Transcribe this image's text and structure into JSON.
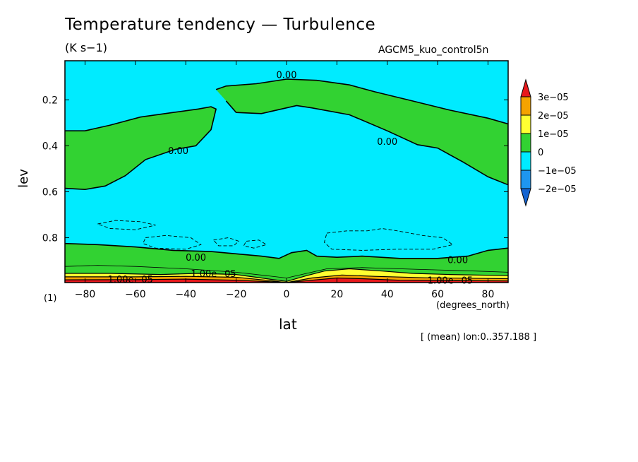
{
  "chart_data": {
    "type": "heatmap",
    "subtype": "latitude-pressure filled contour",
    "title": "Temperature tendency — Turbulence",
    "units": "(K s−1)",
    "dataset": "AGCM5_kuo_control5n",
    "xlabel": "lat",
    "xunits": "(degrees_north)",
    "ylabel": "lev",
    "footnote": "(1)",
    "note": "[ (mean) lon:0..357.188 ]",
    "xlim": [
      -88,
      88
    ],
    "ylim": [
      0.03,
      0.995
    ],
    "y_inverted": true,
    "xticks": [
      -80,
      -60,
      -40,
      -20,
      0,
      20,
      40,
      60,
      80
    ],
    "xtick_labels": [
      "−80",
      "−60",
      "−40",
      "−20",
      "0",
      "20",
      "40",
      "60",
      "80"
    ],
    "yticks": [
      0.2,
      0.4,
      0.6,
      0.8
    ],
    "ytick_labels": [
      "0.2",
      "0.4",
      "0.6",
      "0.8"
    ],
    "colorbar": {
      "labels": [
        "3e−05",
        "2e−05",
        "1e−05",
        "0",
        "−1e−05",
        "−2e−05"
      ],
      "colors": [
        "#e8181c",
        "#f5a300",
        "#ffff32",
        "#32d232",
        "#00ebff",
        "#1e96f0",
        "#1464d2"
      ]
    },
    "colors": {
      "background": "#00ebff",
      "positive_small": "#32d232",
      "yellow": "#ffff32",
      "orange": "#f5a300",
      "red": "#e8181c"
    },
    "contour_labels": [
      {
        "text": "0.00",
        "x": 0,
        "y": 0.09
      },
      {
        "text": "0.00",
        "x": -43,
        "y": 0.42
      },
      {
        "text": "0.00",
        "x": 40,
        "y": 0.38
      },
      {
        "text": "0.00",
        "x": -36,
        "y": 0.885
      },
      {
        "text": "0.00",
        "x": 68,
        "y": 0.895
      },
      {
        "text": "1.00e−05",
        "x": -29,
        "y": 0.955
      },
      {
        "text": "1.00e−05",
        "x": -62,
        "y": 0.98
      },
      {
        "text": "1.00e−05",
        "x": 65,
        "y": 0.985
      }
    ],
    "zero_contour_upper_left": [
      [
        -88,
        0.335
      ],
      [
        -80,
        0.335
      ],
      [
        -70,
        0.31
      ],
      [
        -58,
        0.275
      ],
      [
        -45,
        0.255
      ],
      [
        -35,
        0.24
      ],
      [
        -30,
        0.23
      ],
      [
        -28,
        0.24
      ],
      [
        -30,
        0.33
      ],
      [
        -36,
        0.4
      ],
      [
        -44,
        0.415
      ],
      [
        -56,
        0.46
      ],
      [
        -64,
        0.53
      ],
      [
        -72,
        0.575
      ],
      [
        -80,
        0.59
      ],
      [
        -88,
        0.585
      ]
    ],
    "zero_contour_upper_right": [
      [
        -28,
        0.155
      ],
      [
        -24,
        0.14
      ],
      [
        -12,
        0.13
      ],
      [
        0,
        0.11
      ],
      [
        12,
        0.115
      ],
      [
        25,
        0.135
      ],
      [
        35,
        0.165
      ],
      [
        50,
        0.205
      ],
      [
        65,
        0.245
      ],
      [
        80,
        0.28
      ],
      [
        88,
        0.305
      ],
      [
        88,
        0.57
      ],
      [
        80,
        0.535
      ],
      [
        70,
        0.47
      ],
      [
        60,
        0.41
      ],
      [
        52,
        0.395
      ],
      [
        40,
        0.335
      ],
      [
        25,
        0.265
      ],
      [
        10,
        0.235
      ],
      [
        4,
        0.225
      ],
      [
        0,
        0.235
      ],
      [
        -10,
        0.26
      ],
      [
        -20,
        0.255
      ],
      [
        -24,
        0.205
      ]
    ],
    "zero_contour_lower": [
      [
        -88,
        0.825
      ],
      [
        -75,
        0.83
      ],
      [
        -60,
        0.84
      ],
      [
        -45,
        0.855
      ],
      [
        -30,
        0.86
      ],
      [
        -20,
        0.87
      ],
      [
        -10,
        0.88
      ],
      [
        -3,
        0.89
      ],
      [
        2,
        0.865
      ],
      [
        8,
        0.855
      ],
      [
        12,
        0.88
      ],
      [
        20,
        0.885
      ],
      [
        30,
        0.88
      ],
      [
        45,
        0.89
      ],
      [
        60,
        0.89
      ],
      [
        72,
        0.88
      ],
      [
        80,
        0.855
      ],
      [
        88,
        0.845
      ]
    ],
    "positive_layer_top": [
      [
        -88,
        0.925
      ],
      [
        -75,
        0.92
      ],
      [
        -60,
        0.925
      ],
      [
        -40,
        0.935
      ],
      [
        -20,
        0.95
      ],
      [
        -8,
        0.965
      ],
      [
        0,
        0.975
      ],
      [
        8,
        0.955
      ],
      [
        16,
        0.935
      ],
      [
        30,
        0.93
      ],
      [
        45,
        0.935
      ],
      [
        60,
        0.94
      ],
      [
        75,
        0.945
      ],
      [
        88,
        0.95
      ]
    ],
    "yellow_layer_top": [
      [
        -88,
        0.955
      ],
      [
        -70,
        0.955
      ],
      [
        -50,
        0.96
      ],
      [
        -35,
        0.955
      ],
      [
        -20,
        0.96
      ],
      [
        -10,
        0.975
      ],
      [
        0,
        0.99
      ],
      [
        8,
        0.965
      ],
      [
        15,
        0.945
      ],
      [
        25,
        0.935
      ],
      [
        38,
        0.945
      ],
      [
        50,
        0.955
      ],
      [
        65,
        0.96
      ],
      [
        88,
        0.965
      ]
    ],
    "orange_layer_top": [
      [
        -88,
        0.97
      ],
      [
        -60,
        0.97
      ],
      [
        -40,
        0.968
      ],
      [
        -20,
        0.972
      ],
      [
        -8,
        0.985
      ],
      [
        0,
        0.995
      ],
      [
        10,
        0.975
      ],
      [
        22,
        0.962
      ],
      [
        35,
        0.968
      ],
      [
        55,
        0.974
      ],
      [
        88,
        0.978
      ]
    ],
    "red_layer_top": [
      [
        -88,
        0.983
      ],
      [
        -60,
        0.982
      ],
      [
        -40,
        0.98
      ],
      [
        -20,
        0.985
      ],
      [
        -5,
        0.992
      ],
      [
        0,
        0.995
      ],
      [
        10,
        0.985
      ],
      [
        20,
        0.975
      ],
      [
        30,
        0.978
      ],
      [
        45,
        0.985
      ],
      [
        88,
        0.988
      ]
    ],
    "negative_dashed_regions": [
      [
        [
          -75,
          0.74
        ],
        [
          -68,
          0.725
        ],
        [
          -58,
          0.73
        ],
        [
          -52,
          0.745
        ],
        [
          -60,
          0.765
        ],
        [
          -70,
          0.76
        ]
      ],
      [
        [
          -56,
          0.8
        ],
        [
          -48,
          0.79
        ],
        [
          -38,
          0.8
        ],
        [
          -34,
          0.83
        ],
        [
          -40,
          0.85
        ],
        [
          -52,
          0.845
        ],
        [
          -57,
          0.825
        ]
      ],
      [
        [
          -29,
          0.81
        ],
        [
          -23,
          0.8
        ],
        [
          -19,
          0.815
        ],
        [
          -21,
          0.835
        ],
        [
          -27,
          0.835
        ]
      ],
      [
        [
          -16,
          0.815
        ],
        [
          -11,
          0.81
        ],
        [
          -8,
          0.83
        ],
        [
          -13,
          0.845
        ],
        [
          -17,
          0.835
        ]
      ],
      [
        [
          16,
          0.78
        ],
        [
          24,
          0.77
        ],
        [
          32,
          0.77
        ],
        [
          38,
          0.76
        ],
        [
          44,
          0.77
        ],
        [
          54,
          0.79
        ],
        [
          62,
          0.8
        ],
        [
          66,
          0.83
        ],
        [
          58,
          0.85
        ],
        [
          44,
          0.85
        ],
        [
          30,
          0.855
        ],
        [
          18,
          0.85
        ],
        [
          15,
          0.82
        ]
      ]
    ]
  }
}
